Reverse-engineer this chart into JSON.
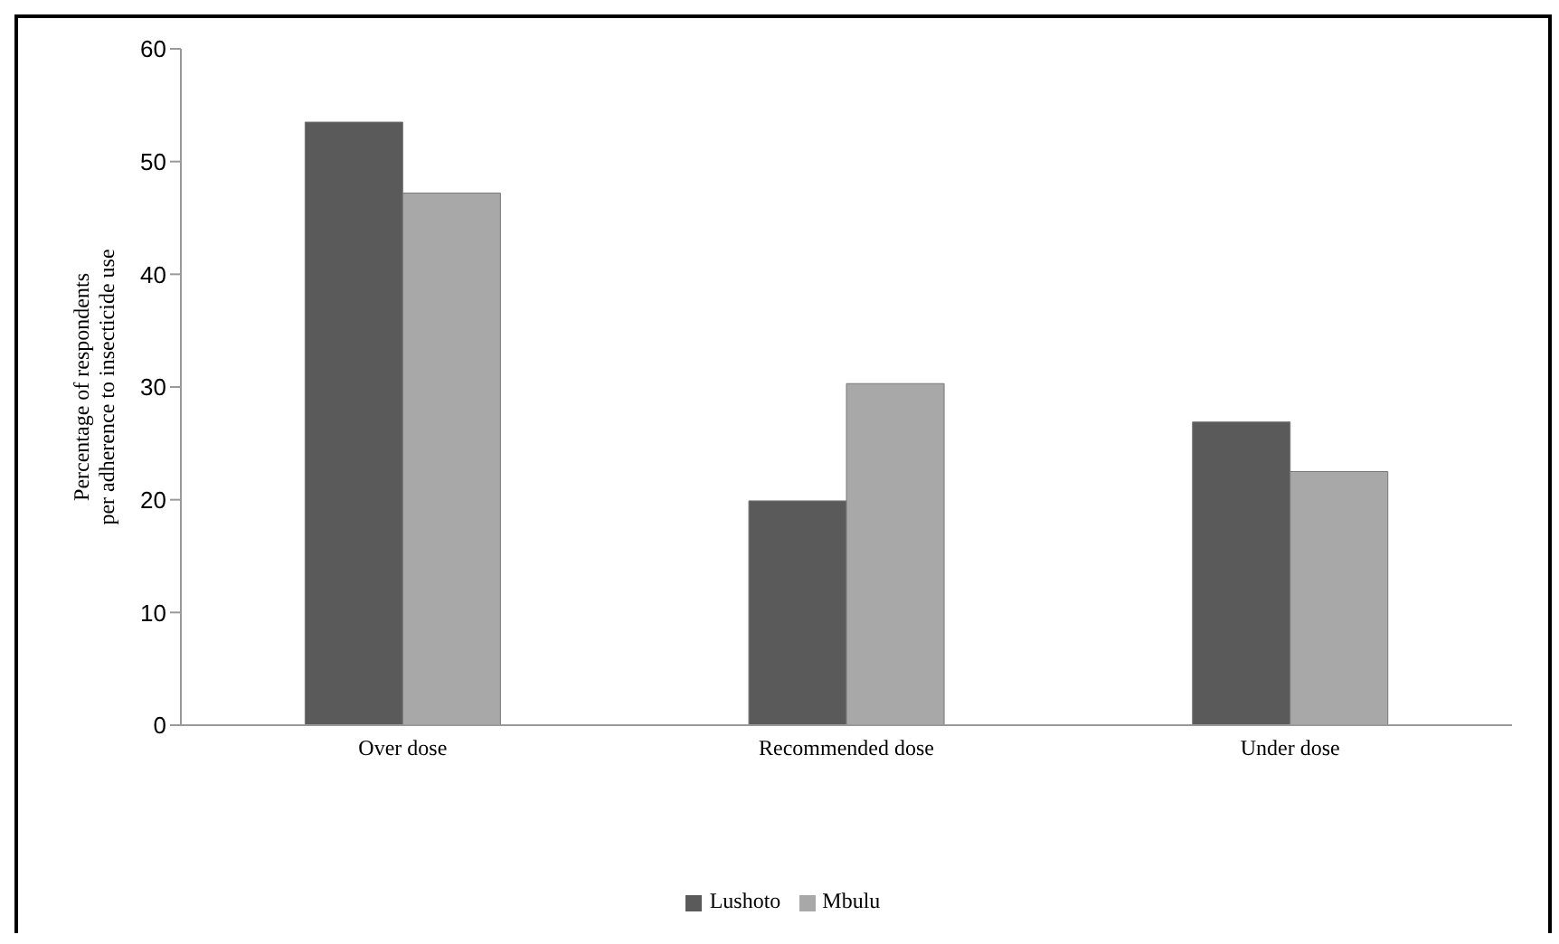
{
  "chart_data": {
    "type": "bar",
    "ylabel": "Percentage of respondents\nper adherence to insecticide use",
    "categories": [
      "Over dose",
      "Recommended dose",
      "Under dose"
    ],
    "series": [
      {
        "name": "Lushoto",
        "color": "#5a5a5a",
        "values": [
          53.5,
          19.9,
          26.9
        ]
      },
      {
        "name": "Mbulu",
        "color": "#a8a8a8",
        "values": [
          47.2,
          30.3,
          22.5
        ]
      }
    ],
    "ylim": [
      0,
      60
    ],
    "yticks": [
      0,
      10,
      20,
      30,
      40,
      50,
      60
    ],
    "grid": false,
    "legend": "bottom"
  }
}
